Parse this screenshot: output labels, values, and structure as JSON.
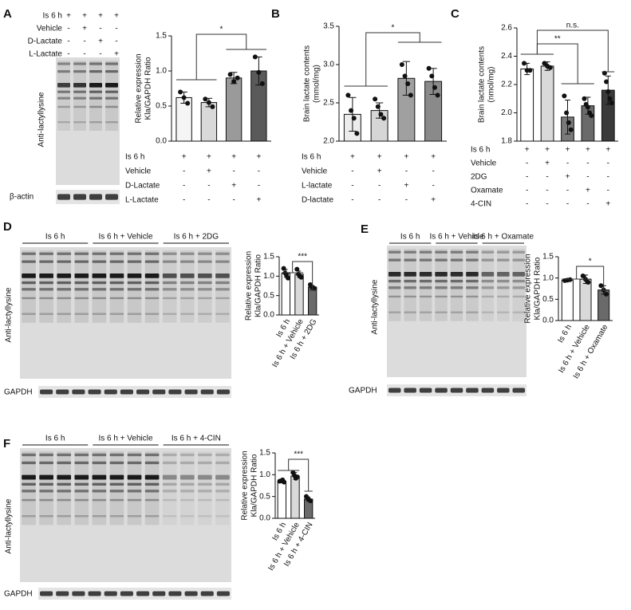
{
  "panels": [
    {
      "letter": "A",
      "blot": {
        "conditions": [
          {
            "label": "Is 6 h",
            "marks": [
              "+",
              "+",
              "+",
              "+"
            ]
          },
          {
            "label": "Vehicle",
            "marks": [
              "-",
              "+",
              "-",
              "-"
            ]
          },
          {
            "label": "D-Lactate",
            "marks": [
              "-",
              "-",
              "+",
              "-"
            ]
          },
          {
            "label": "L-Lactate",
            "marks": [
              "-",
              "-",
              "-",
              "+"
            ]
          }
        ],
        "main_label": "Anti-lactyllysine",
        "loading_label": "β-actin"
      }
    },
    {
      "letter": "B"
    },
    {
      "letter": "C"
    },
    {
      "letter": "D",
      "blot": {
        "groups": [
          "Is 6 h",
          "Is 6 h + Vehicle",
          "Is 6 h + 2DG"
        ],
        "main_label": "Anti-lactyllysine",
        "loading_label": "GAPDH"
      }
    },
    {
      "letter": "E",
      "blot": {
        "groups": [
          "Is 6 h",
          "Is 6 h + Vehicle",
          "Is 6 h + Oxamate"
        ],
        "main_label": "Anti-lactyllysine",
        "loading_label": "GAPDH"
      }
    },
    {
      "letter": "F",
      "blot": {
        "groups": [
          "Is 6 h",
          "Is 6 h + Vehicle",
          "Is 6 h + 4-CIN"
        ],
        "main_label": "Anti-lactyllysine",
        "loading_label": "GAPDH"
      }
    }
  ],
  "chart_data": [
    {
      "type": "bar",
      "ylabel": [
        "Relative expression",
        "Kla/GAPDH Ratio"
      ],
      "categories": [
        null,
        null,
        null,
        null
      ],
      "values": [
        0.62,
        0.55,
        0.9,
        1.0
      ],
      "errors": [
        0.08,
        0.06,
        0.08,
        0.2
      ],
      "points": [
        [
          0.7,
          0.62,
          0.54
        ],
        [
          0.6,
          0.55,
          0.49
        ],
        [
          0.95,
          0.85,
          0.9
        ],
        [
          1.2,
          0.98,
          0.82
        ]
      ],
      "colors": [
        "#f5f5f5",
        "#d9d9d9",
        "#9a9a9a",
        "#5a5a5a"
      ],
      "ylim": [
        0,
        1.5
      ],
      "yticks": [
        {
          "value": 0,
          "label": "0.0"
        },
        0.5,
        {
          "value": 1,
          "label": "1.0"
        },
        1.5
      ],
      "annotations": [
        "*"
      ],
      "conditions": [
        {
          "label": "Is 6 h",
          "marks": [
            "+",
            "+",
            "+",
            "+"
          ]
        },
        {
          "label": "Vehicle",
          "marks": [
            "-",
            "+",
            "-",
            "-"
          ]
        },
        {
          "label": "D-Lactate",
          "marks": [
            "-",
            "-",
            "+",
            "-"
          ]
        },
        {
          "label": "L-Lactate",
          "marks": [
            "-",
            "-",
            "-",
            "+"
          ]
        }
      ]
    },
    {
      "type": "bar",
      "ylabel": [
        "Brain lactate contents",
        "(mmol/mg)"
      ],
      "categories": [
        null,
        null,
        null,
        null
      ],
      "values": [
        2.35,
        2.4,
        2.82,
        2.78
      ],
      "errors": [
        0.22,
        0.1,
        0.22,
        0.17
      ],
      "points": [
        [
          2.6,
          2.4,
          2.3,
          2.1
        ],
        [
          2.55,
          2.45,
          2.35,
          2.3
        ],
        [
          3.0,
          2.85,
          2.75,
          2.6
        ],
        [
          2.95,
          2.85,
          2.7,
          2.6
        ]
      ],
      "colors": [
        "#ececec",
        "#d6d6d6",
        "#a0a0a0",
        "#8a8a8a"
      ],
      "ylim": [
        2,
        3.5
      ],
      "yticks": [
        {
          "value": 2,
          "label": "2.0"
        },
        2.5,
        {
          "value": 3,
          "label": "3.0"
        },
        3.5
      ],
      "annotations": [
        "*"
      ],
      "conditions": [
        {
          "label": "Is 6 h",
          "marks": [
            "+",
            "+",
            "+",
            "+"
          ]
        },
        {
          "label": "Vehicle",
          "marks": [
            "-",
            "+",
            "-",
            "-"
          ]
        },
        {
          "label": "L-lactate",
          "marks": [
            "-",
            "-",
            "+",
            "-"
          ]
        },
        {
          "label": "D-lactate",
          "marks": [
            "-",
            "-",
            "-",
            "+"
          ]
        }
      ]
    },
    {
      "type": "bar",
      "ylabel": [
        "Brain lactate contents",
        "(nmol/mg)"
      ],
      "categories": [
        null,
        null,
        null,
        null,
        null
      ],
      "values": [
        2.31,
        2.33,
        1.97,
        2.05,
        2.16
      ],
      "errors": [
        0.04,
        0.03,
        0.12,
        0.06,
        0.1
      ],
      "points": [
        [
          2.35,
          2.3,
          2.3
        ],
        [
          2.35,
          2.33,
          2.32
        ],
        [
          2.12,
          2.0,
          1.93,
          1.88
        ],
        [
          2.1,
          2.06,
          2.04,
          2.0,
          1.98
        ],
        [
          2.28,
          2.22,
          2.15,
          2.1,
          2.07
        ]
      ],
      "colors": [
        "#ffffff",
        "#d9d9d9",
        "#7a7a7a",
        "#6a6a6a",
        "#3a3a3a"
      ],
      "ylim": [
        1.8,
        2.6
      ],
      "yticks": [
        1.8,
        {
          "value": 2,
          "label": "2.0"
        },
        2.2,
        2.4,
        2.6
      ],
      "annotations": [
        "n.s.",
        "**"
      ],
      "conditions": [
        {
          "label": "Is 6 h",
          "marks": [
            "+",
            "+",
            "+",
            "+",
            "+"
          ]
        },
        {
          "label": "Vehicle",
          "marks": [
            "-",
            "+",
            "-",
            "-",
            "-"
          ]
        },
        {
          "label": "2DG",
          "marks": [
            "-",
            "-",
            "+",
            "-",
            "-"
          ]
        },
        {
          "label": "Oxamate",
          "marks": [
            "-",
            "-",
            "-",
            "+",
            "-"
          ]
        },
        {
          "label": "4-CIN",
          "marks": [
            "-",
            "-",
            "-",
            "-",
            "+"
          ]
        }
      ]
    },
    {
      "type": "bar",
      "ylabel": [
        "Relative expression",
        "Kla/GAPDH Ratio"
      ],
      "categories": [
        "Is 6 h",
        "Is 6 h + Vehicle",
        "Is 6 h + 2DG"
      ],
      "values": [
        1.07,
        1.05,
        0.72
      ],
      "errors": [
        0.1,
        0.08,
        0.04
      ],
      "points": [
        [
          1.2,
          1.08,
          1.02,
          0.95
        ],
        [
          1.18,
          1.05,
          1.0,
          0.97
        ],
        [
          0.78,
          0.72,
          0.7,
          0.68
        ]
      ],
      "colors": [
        "#ffffff",
        "#d9d9d9",
        "#6a6a6a"
      ],
      "ylim": [
        0,
        1.5
      ],
      "yticks": [
        {
          "value": 0,
          "label": "0.0"
        },
        0.5,
        {
          "value": 1,
          "label": "1.0"
        },
        1.5
      ],
      "annotations": [
        "***"
      ]
    },
    {
      "type": "bar",
      "ylabel": [
        "Relative expression",
        "Kla/GAPDH Ratio"
      ],
      "categories": [
        "Is 6 h",
        "Is 6 h + Vehicle",
        "Is 6 h + Oxamate"
      ],
      "values": [
        0.95,
        0.97,
        0.72
      ],
      "errors": [
        0.03,
        0.1,
        0.1
      ],
      "points": [
        [
          0.94,
          0.95,
          0.96
        ],
        [
          1.05,
          0.97,
          0.9
        ],
        [
          0.82,
          0.72,
          0.62
        ]
      ],
      "colors": [
        "#ffffff",
        "#d9d9d9",
        "#6a6a6a"
      ],
      "ylim": [
        0,
        1.5
      ],
      "yticks": [
        {
          "value": 0,
          "label": "0.0"
        },
        0.5,
        {
          "value": 1,
          "label": "1.0"
        },
        1.5
      ],
      "annotations": [
        "*"
      ]
    },
    {
      "type": "bar",
      "ylabel": [
        "Relative expression",
        "Kla/GAPDH Ratio"
      ],
      "categories": [
        "Is 6 h",
        "Is 6 h + Vehicle",
        "Is 6 h + 4-CIN"
      ],
      "values": [
        0.85,
        0.97,
        0.44
      ],
      "errors": [
        0.03,
        0.08,
        0.05
      ],
      "points": [
        [
          0.85,
          0.86,
          0.88,
          0.83
        ],
        [
          1.05,
          0.98,
          0.92,
          0.95
        ],
        [
          0.5,
          0.45,
          0.42,
          0.4
        ]
      ],
      "colors": [
        "#ffffff",
        "#d9d9d9",
        "#6a6a6a"
      ],
      "ylim": [
        0,
        1.5
      ],
      "yticks": [
        {
          "value": 0,
          "label": "0.0"
        },
        0.5,
        {
          "value": 1,
          "label": "1.0"
        },
        1.5
      ],
      "annotations": [
        "***"
      ]
    }
  ]
}
